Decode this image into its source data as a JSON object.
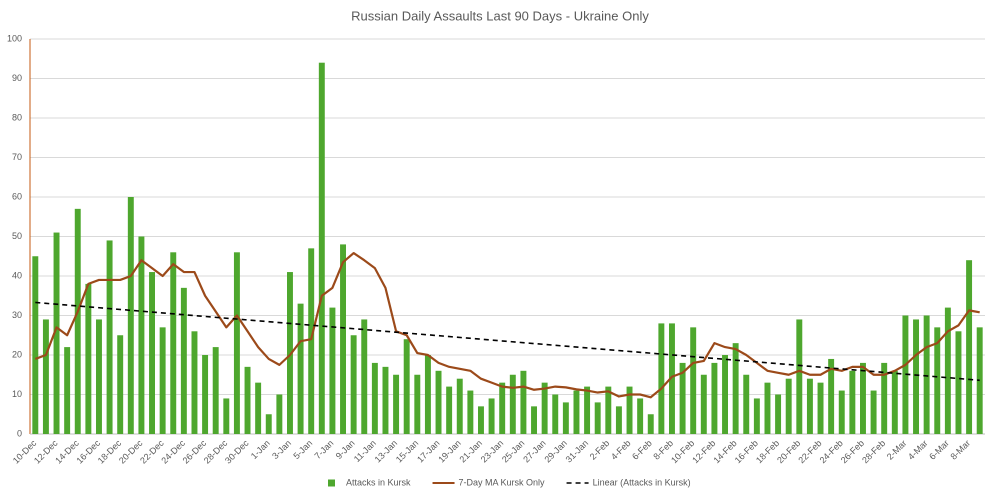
{
  "chart_data": {
    "type": "bar",
    "title": "Russian Daily Assaults Last 90 Days - Ukraine Only",
    "categories": [
      "10-Dec",
      null,
      "12-Dec",
      null,
      "14-Dec",
      null,
      "16-Dec",
      null,
      "18-Dec",
      null,
      "20-Dec",
      null,
      "22-Dec",
      null,
      "24-Dec",
      null,
      "26-Dec",
      null,
      "28-Dec",
      null,
      "30-Dec",
      null,
      "1-Jan",
      null,
      "3-Jan",
      null,
      "5-Jan",
      null,
      "7-Jan",
      null,
      "9-Jan",
      null,
      "11-Jan",
      null,
      "13-Jan",
      null,
      "15-Jan",
      null,
      "17-Jan",
      null,
      "19-Jan",
      null,
      "21-Jan",
      null,
      "23-Jan",
      null,
      "25-Jan",
      null,
      "27-Jan",
      null,
      "29-Jan",
      null,
      "31-Jan",
      null,
      "2-Feb",
      null,
      "4-Feb",
      null,
      "6-Feb",
      null,
      "8-Feb",
      null,
      "10-Feb",
      null,
      "12-Feb",
      null,
      "14-Feb",
      null,
      "16-Feb",
      null,
      "18-Feb",
      null,
      "20-Feb",
      null,
      "22-Feb",
      null,
      "24-Feb",
      null,
      "26-Feb",
      null,
      "28-Feb",
      null,
      "2-Mar",
      null,
      "4-Mar",
      null,
      "6-Mar",
      null,
      "8-Mar",
      null
    ],
    "series": [
      {
        "name": "Attacks in Kursk",
        "type": "bar",
        "color": "#4ea72e",
        "values": [
          45,
          29,
          51,
          22,
          57,
          38,
          29,
          49,
          25,
          60,
          50,
          41,
          27,
          46,
          37,
          26,
          20,
          22,
          9,
          46,
          17,
          13,
          5,
          10,
          41,
          33,
          47,
          94,
          32,
          48,
          25,
          29,
          18,
          17,
          15,
          24,
          15,
          20,
          16,
          12,
          14,
          11,
          7,
          9,
          13,
          15,
          16,
          7,
          13,
          10,
          8,
          11,
          12,
          8,
          12,
          7,
          12,
          9,
          5,
          28,
          28,
          18,
          27,
          15,
          18,
          20,
          23,
          15,
          9,
          13,
          10,
          14,
          29,
          14,
          13,
          19,
          11,
          16,
          18,
          11,
          18,
          16,
          30,
          29,
          30,
          27,
          32,
          26,
          44,
          27
        ]
      },
      {
        "name": "7-Day MA Kursk Only",
        "type": "line",
        "color": "#9c4a1a",
        "values": [
          19,
          20,
          27,
          25,
          31,
          38,
          39,
          39,
          39,
          40,
          44,
          42,
          40,
          43,
          41,
          41,
          35,
          31,
          27,
          30,
          26,
          22,
          19,
          17.5,
          20,
          23.5,
          24,
          35,
          37,
          43.5,
          45.8,
          44,
          42,
          37,
          26,
          25,
          20.5,
          20,
          18,
          17,
          16.5,
          16,
          14,
          13,
          12,
          11.7,
          12,
          11.2,
          11.5,
          12,
          11.8,
          11.3,
          11,
          10.5,
          10.8,
          9.5,
          10,
          10,
          9.3,
          11.5,
          14.5,
          15.5,
          18,
          18.5,
          23,
          22,
          21.5,
          20,
          18,
          16,
          15.5,
          15,
          16,
          15,
          15,
          16.5,
          16,
          17,
          17,
          15,
          15,
          16,
          17.5,
          20,
          22,
          23,
          26,
          27.5,
          31.3,
          30.8
        ]
      }
    ],
    "trend": {
      "name": "Linear (Attacks in Kursk)",
      "color": "#000000",
      "start": 33.3,
      "end": 13.6
    },
    "ylim": [
      0,
      100
    ],
    "yticks": [
      0,
      10,
      20,
      30,
      40,
      50,
      60,
      70,
      80,
      90,
      100
    ],
    "grid": true
  }
}
